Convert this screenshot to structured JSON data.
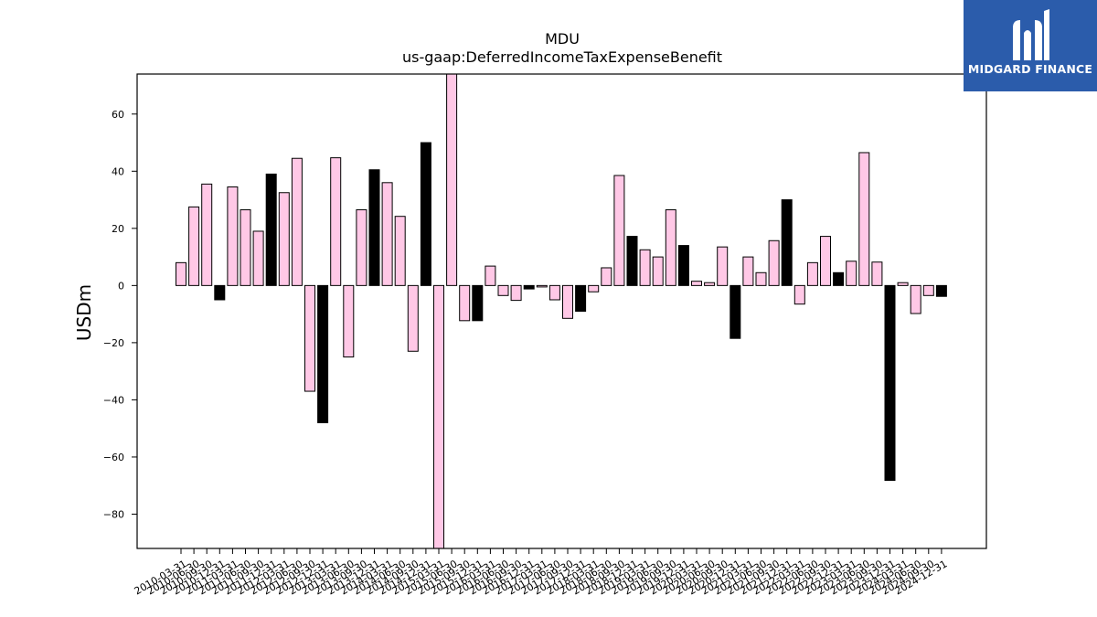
{
  "chart_data": {
    "type": "bar",
    "title": "MDU",
    "subtitle": "us-gaap:DeferredIncomeTaxExpenseBenefit",
    "xlabel": "",
    "ylabel": "USDm",
    "ylim": [
      -92,
      74
    ],
    "yticks": [
      -80,
      -60,
      -40,
      -20,
      0,
      20,
      40,
      60
    ],
    "grid": false,
    "colors": {
      "pink": "#ffc8e6",
      "black": "#000000",
      "edge": "#000000"
    },
    "categories": [
      "2010-03-31",
      "2010-06-30",
      "2010-09-30",
      "2010-12-31",
      "2011-03-31",
      "2011-06-30",
      "2011-09-30",
      "2011-12-31",
      "2012-03-31",
      "2012-06-30",
      "2012-09-30",
      "2012-12-31",
      "2013-03-31",
      "2013-06-30",
      "2013-09-30",
      "2013-12-31",
      "2014-03-31",
      "2014-06-30",
      "2014-09-30",
      "2014-12-31",
      "2015-03-31",
      "2015-06-30",
      "2015-09-30",
      "2015-12-31",
      "2016-03-31",
      "2016-06-30",
      "2016-09-30",
      "2016-12-31",
      "2017-03-31",
      "2017-06-30",
      "2017-09-30",
      "2017-12-31",
      "2018-03-31",
      "2018-06-30",
      "2018-09-30",
      "2018-12-31",
      "2019-03-31",
      "2019-06-30",
      "2019-09-30",
      "2019-12-31",
      "2020-03-31",
      "2020-06-30",
      "2020-09-30",
      "2020-12-31",
      "2021-03-31",
      "2021-06-30",
      "2021-09-30",
      "2021-12-31",
      "2022-03-31",
      "2022-06-30",
      "2022-09-30",
      "2022-12-31",
      "2023-03-31",
      "2023-06-30",
      "2023-09-30",
      "2023-12-31",
      "2024-03-31",
      "2024-06-30",
      "2024-09-30",
      "2024-12-31"
    ],
    "values": [
      8,
      27.5,
      35.5,
      -5,
      34.5,
      26.5,
      19,
      39,
      32.5,
      44.5,
      -37,
      -48,
      44.7,
      -25,
      26.5,
      40.5,
      36,
      24.2,
      -23,
      50,
      -92,
      74,
      -12.3,
      -12.3,
      6.8,
      -3.5,
      -5.2,
      -1.2,
      -0.5,
      -5,
      -11.5,
      -9,
      -2.2,
      6.2,
      38.5,
      17.2,
      12.5,
      10,
      26.5,
      14,
      1.5,
      1,
      13.5,
      -18.5,
      10,
      4.5,
      15.7,
      30,
      -6.5,
      8,
      17.2,
      4.5,
      8.5,
      46.5,
      8.2,
      -68.2,
      1,
      -9.8,
      -3.5,
      -3.8
    ],
    "bar_colors": [
      "pink",
      "pink",
      "pink",
      "black",
      "pink",
      "pink",
      "pink",
      "black",
      "pink",
      "pink",
      "pink",
      "black",
      "pink",
      "pink",
      "pink",
      "black",
      "pink",
      "pink",
      "pink",
      "black",
      "pink",
      "pink",
      "pink",
      "black",
      "pink",
      "pink",
      "pink",
      "black",
      "pink",
      "pink",
      "pink",
      "black",
      "pink",
      "pink",
      "pink",
      "black",
      "pink",
      "pink",
      "pink",
      "black",
      "pink",
      "pink",
      "pink",
      "black",
      "pink",
      "pink",
      "pink",
      "black",
      "pink",
      "pink",
      "pink",
      "black",
      "pink",
      "pink",
      "pink",
      "black",
      "pink",
      "pink",
      "pink",
      "black"
    ]
  },
  "logo": {
    "text": "MIDGARD FINANCE",
    "background": "#2b5cab"
  }
}
